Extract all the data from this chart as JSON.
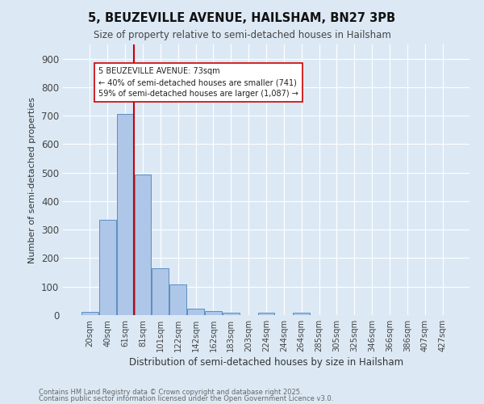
{
  "title1": "5, BEUZEVILLE AVENUE, HAILSHAM, BN27 3PB",
  "title2": "Size of property relative to semi-detached houses in Hailsham",
  "xlabel": "Distribution of semi-detached houses by size in Hailsham",
  "ylabel": "Number of semi-detached properties",
  "annotation_line1": "5 BEUZEVILLE AVENUE: 73sqm",
  "annotation_line2": "← 40% of semi-detached houses are smaller (741)",
  "annotation_line3": "59% of semi-detached houses are larger (1,087) →",
  "footnote1": "Contains HM Land Registry data © Crown copyright and database right 2025.",
  "footnote2": "Contains public sector information licensed under the Open Government Licence v3.0.",
  "bar_labels": [
    "20sqm",
    "40sqm",
    "61sqm",
    "81sqm",
    "101sqm",
    "122sqm",
    "142sqm",
    "162sqm",
    "183sqm",
    "203sqm",
    "224sqm",
    "244sqm",
    "264sqm",
    "285sqm",
    "305sqm",
    "325sqm",
    "346sqm",
    "366sqm",
    "386sqm",
    "407sqm",
    "427sqm"
  ],
  "bar_values": [
    12,
    335,
    706,
    493,
    165,
    107,
    23,
    14,
    8,
    0,
    8,
    0,
    8,
    0,
    0,
    0,
    0,
    0,
    0,
    0,
    0
  ],
  "bar_color": "#aec6e8",
  "bar_edge_color": "#5b8ec4",
  "vline_color": "#cc0000",
  "annotation_box_facecolor": "#ffffff",
  "annotation_box_edgecolor": "#cc0000",
  "background_color": "#dce9f5",
  "ylim": [
    0,
    950
  ],
  "yticks": [
    0,
    100,
    200,
    300,
    400,
    500,
    600,
    700,
    800,
    900
  ]
}
